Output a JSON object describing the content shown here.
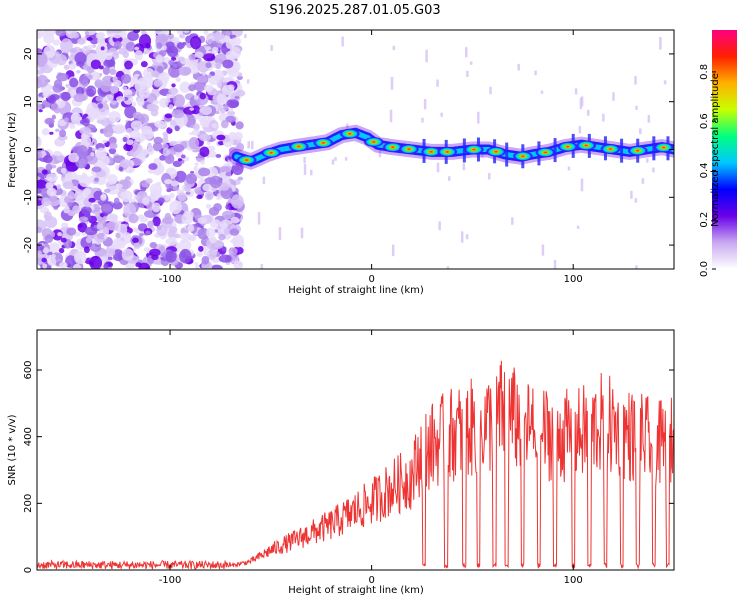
{
  "title": "S196.2025.287.01.05.G03",
  "chart_data": [
    {
      "type": "heatmap",
      "title": "S196.2025.287.01.05.G03",
      "xlabel": "Height of straight line (km)",
      "ylabel": "Frequency (Hz)",
      "xlim": [
        -166,
        150
      ],
      "ylim": [
        -25,
        25
      ],
      "xticks": [
        -100,
        0,
        100
      ],
      "yticks": [
        -20,
        -10,
        0,
        10,
        20
      ],
      "colorbar": {
        "label": "Normalized spectral amplitude",
        "range": [
          0.0,
          0.97
        ],
        "ticks": [
          0.0,
          0.2,
          0.4,
          0.6,
          0.8
        ],
        "tick_labels": [
          "0.0",
          "0.2",
          "0.4",
          "0.6",
          "0.8"
        ],
        "colormap": [
          "#ffffff",
          "#c8a8f0",
          "#6a00e8",
          "#0000ff",
          "#00c8ff",
          "#00ff80",
          "#c8ff00",
          "#ffb000",
          "#ff2000",
          "#ff0080"
        ]
      },
      "noise_region_end_km": -67,
      "ridge": {
        "x": [
          -67,
          -60,
          -52,
          -45,
          -38,
          -30,
          -22,
          -15,
          -8,
          -2,
          3,
          10,
          20,
          30,
          40,
          50,
          58,
          66,
          74,
          80,
          88,
          96,
          104,
          112,
          120,
          128,
          136,
          144,
          150
        ],
        "y": [
          -1.5,
          -2.5,
          -1,
          0,
          0.5,
          1,
          1.5,
          3,
          3.5,
          2.5,
          1,
          0.5,
          0,
          -0.5,
          -0.5,
          0,
          0,
          -1,
          -1.5,
          -1,
          -0.5,
          0.5,
          1,
          0.5,
          0,
          -0.5,
          0,
          0.5,
          0
        ]
      }
    },
    {
      "type": "line",
      "xlabel": "Height of straight line (km)",
      "ylabel": "SNR (10 * v/v)",
      "xlim": [
        -166,
        150
      ],
      "ylim": [
        0,
        720
      ],
      "xticks": [
        -100,
        0,
        100
      ],
      "yticks": [
        0,
        200,
        400,
        600
      ],
      "series_color": "#ee3333",
      "envelope": {
        "x": [
          -166,
          -70,
          -60,
          -50,
          -40,
          -30,
          -20,
          -10,
          0,
          10,
          20,
          25,
          40,
          60,
          65,
          80,
          100,
          115,
          130,
          145,
          150
        ],
        "y": [
          15,
          15,
          30,
          70,
          100,
          130,
          160,
          200,
          240,
          290,
          330,
          420,
          480,
          520,
          560,
          490,
          470,
          520,
          470,
          440,
          460
        ]
      },
      "dropouts_km": [
        26,
        37,
        46,
        53,
        61,
        67,
        75,
        83,
        91,
        100,
        108,
        116,
        124,
        132,
        140,
        147
      ]
    }
  ]
}
